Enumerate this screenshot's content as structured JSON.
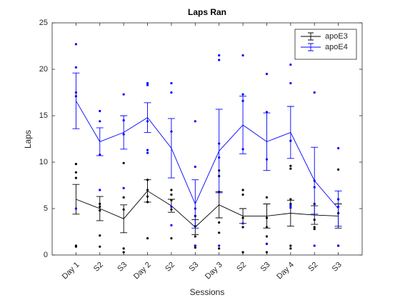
{
  "chart_data": {
    "type": "errorbar-line",
    "title": "Laps Ran",
    "xlabel": "Sessions",
    "ylabel": "Laps",
    "categories": [
      "Day 1",
      "S2",
      "S3",
      "Day 2",
      "S2",
      "S3",
      "Day 3",
      "S2",
      "S3",
      "Day 4",
      "S2",
      "S3"
    ],
    "xlim": [
      0,
      13
    ],
    "ylim": [
      0,
      25
    ],
    "yticks": [
      0,
      5,
      10,
      15,
      20,
      25
    ],
    "grid": false,
    "legend": "northeast",
    "series": [
      {
        "name": "apoE3",
        "color": "#000000",
        "values": [
          6.0,
          5.0,
          3.9,
          6.9,
          5.3,
          3.0,
          5.4,
          4.2,
          4.2,
          4.5,
          4.3,
          4.2
        ],
        "errors": [
          1.6,
          1.3,
          1.5,
          1.2,
          0.7,
          0.8,
          1.4,
          0.8,
          1.3,
          1.4,
          1.0,
          1.3
        ],
        "points": [
          [
            9.8,
            8.9,
            8.3,
            1.0,
            0.9
          ],
          [
            5.5,
            5.2,
            4.8,
            2.1,
            0.9
          ],
          [
            9.9,
            6.2,
            4.9,
            0.7,
            0.3
          ],
          [
            8.1,
            7.0,
            6.3,
            5.7,
            1.8
          ],
          [
            7.0,
            6.5,
            5.9,
            4.9,
            1.8
          ],
          [
            4.2,
            3.1,
            2.0,
            1.0,
            0.8
          ],
          [
            9.1,
            8.5,
            6.8,
            3.5,
            2.4,
            0.7
          ],
          [
            7.0,
            6.5,
            4.0,
            3.0,
            0.3
          ],
          [
            6.2,
            4.0,
            3.0,
            2.0,
            1.2,
            0.3
          ],
          [
            9.6,
            9.3,
            6.0,
            5.5,
            1.0,
            0.7
          ],
          [
            5.5,
            3.8,
            3.0,
            2.8
          ],
          [
            9.2,
            6.0,
            4.5,
            1.0
          ]
        ]
      },
      {
        "name": "apoE4",
        "color": "#0000ff",
        "values": [
          16.6,
          12.2,
          13.2,
          14.8,
          11.5,
          5.5,
          11.2,
          14.0,
          12.2,
          13.2,
          8.0,
          5.0
        ],
        "errors": [
          3.0,
          1.5,
          1.8,
          1.6,
          3.2,
          2.6,
          4.5,
          3.1,
          3.1,
          2.8,
          3.6,
          1.9
        ],
        "points": [
          [
            22.7,
            20.2,
            17.5,
            17.1,
            5.0
          ],
          [
            15.5,
            14.4,
            10.8,
            7.0
          ],
          [
            17.3,
            14.5,
            13.0,
            7.2
          ],
          [
            18.5,
            18.3,
            14.4,
            11.3,
            11.0
          ],
          [
            18.5,
            17.5,
            13.3,
            5.2,
            3.2
          ],
          [
            14.4,
            9.5,
            5.0,
            1.0
          ],
          [
            21.5,
            21.0,
            12.0,
            10.5,
            1.0
          ],
          [
            21.5,
            17.3,
            16.6,
            11.4,
            3.4
          ],
          [
            19.5,
            15.4,
            10.3,
            1.2
          ],
          [
            20.5,
            18.5,
            12.3,
            5.3,
            5.1
          ],
          [
            17.5,
            8.0,
            7.3,
            1.0
          ],
          [
            11.5,
            6.0,
            5.2,
            1.0
          ]
        ]
      }
    ]
  }
}
